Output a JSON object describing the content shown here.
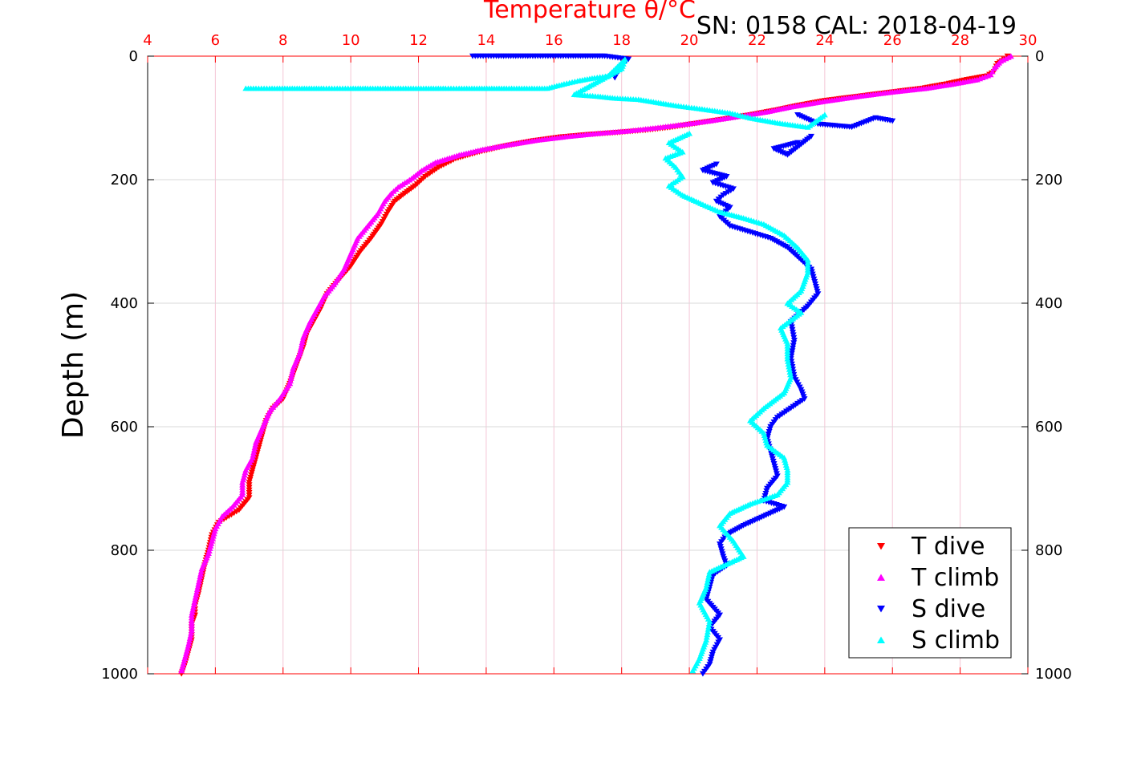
{
  "chart_data": {
    "type": "scatter",
    "title": "Temperature θ/°C",
    "subtitle": "SN: 0158  CAL: 2018-04-19",
    "ylabel": "Depth (m)",
    "xlim": [
      4,
      30
    ],
    "ylim": [
      0,
      1000
    ],
    "y_inverted": true,
    "x_ticks": [
      4,
      6,
      8,
      10,
      12,
      14,
      16,
      18,
      20,
      22,
      24,
      26,
      28,
      30
    ],
    "y_ticks": [
      0,
      200,
      400,
      600,
      800,
      1000
    ],
    "grid": true,
    "legend_position": "bottom-right",
    "colors": {
      "axis_top": "#ff0000",
      "grid": "#d9d9d9",
      "grid_x": "#f4c6d6"
    },
    "series": [
      {
        "name": "T dive",
        "marker": "triangle-down",
        "color": "#ff0000",
        "points": [
          [
            29.4,
            0
          ],
          [
            29.3,
            5
          ],
          [
            29.1,
            12
          ],
          [
            29.0,
            25
          ],
          [
            28.8,
            32
          ],
          [
            28.2,
            38
          ],
          [
            27.6,
            45
          ],
          [
            26.9,
            52
          ],
          [
            26.0,
            58
          ],
          [
            25.0,
            65
          ],
          [
            24.0,
            72
          ],
          [
            23.2,
            80
          ],
          [
            22.5,
            88
          ],
          [
            21.8,
            95
          ],
          [
            21.0,
            102
          ],
          [
            20.3,
            108
          ],
          [
            19.5,
            115
          ],
          [
            18.7,
            120
          ],
          [
            17.8,
            124
          ],
          [
            17.0,
            127
          ],
          [
            16.2,
            131
          ],
          [
            15.4,
            137
          ],
          [
            14.6,
            145
          ],
          [
            13.8,
            155
          ],
          [
            13.1,
            166
          ],
          [
            12.6,
            180
          ],
          [
            12.2,
            195
          ],
          [
            11.9,
            210
          ],
          [
            11.6,
            222
          ],
          [
            11.3,
            235
          ],
          [
            11.1,
            252
          ],
          [
            10.9,
            272
          ],
          [
            10.6,
            295
          ],
          [
            10.3,
            315
          ],
          [
            10.0,
            340
          ],
          [
            9.6,
            365
          ],
          [
            9.3,
            385
          ],
          [
            9.1,
            410
          ],
          [
            8.9,
            430
          ],
          [
            8.7,
            450
          ],
          [
            8.6,
            470
          ],
          [
            8.4,
            500
          ],
          [
            8.2,
            530
          ],
          [
            8.0,
            555
          ],
          [
            7.7,
            570
          ],
          [
            7.5,
            590
          ],
          [
            7.4,
            610
          ],
          [
            7.3,
            630
          ],
          [
            7.2,
            650
          ],
          [
            7.1,
            670
          ],
          [
            7.0,
            690
          ],
          [
            7.0,
            715
          ],
          [
            6.7,
            735
          ],
          [
            6.4,
            745
          ],
          [
            6.1,
            755
          ],
          [
            5.9,
            775
          ],
          [
            5.8,
            800
          ],
          [
            5.7,
            820
          ],
          [
            5.6,
            845
          ],
          [
            5.5,
            870
          ],
          [
            5.4,
            890
          ],
          [
            5.4,
            905
          ],
          [
            5.3,
            920
          ],
          [
            5.3,
            945
          ],
          [
            5.2,
            965
          ],
          [
            5.1,
            985
          ],
          [
            5.0,
            1000
          ]
        ]
      },
      {
        "name": "T climb",
        "marker": "triangle-up",
        "color": "#ff00ff",
        "points": [
          [
            29.5,
            0
          ],
          [
            29.2,
            8
          ],
          [
            29.0,
            20
          ],
          [
            28.9,
            30
          ],
          [
            28.5,
            38
          ],
          [
            27.8,
            45
          ],
          [
            27.0,
            52
          ],
          [
            26.0,
            58
          ],
          [
            25.0,
            65
          ],
          [
            24.0,
            73
          ],
          [
            23.0,
            82
          ],
          [
            22.3,
            90
          ],
          [
            21.5,
            97
          ],
          [
            20.7,
            104
          ],
          [
            19.9,
            110
          ],
          [
            19.0,
            116
          ],
          [
            18.2,
            121
          ],
          [
            17.3,
            125
          ],
          [
            16.4,
            130
          ],
          [
            15.5,
            136
          ],
          [
            14.7,
            143
          ],
          [
            13.9,
            151
          ],
          [
            13.2,
            160
          ],
          [
            12.5,
            172
          ],
          [
            12.1,
            185
          ],
          [
            11.8,
            198
          ],
          [
            11.4,
            212
          ],
          [
            11.2,
            222
          ],
          [
            11.0,
            235
          ],
          [
            10.8,
            255
          ],
          [
            10.5,
            275
          ],
          [
            10.2,
            295
          ],
          [
            10.0,
            320
          ],
          [
            9.8,
            345
          ],
          [
            9.5,
            370
          ],
          [
            9.2,
            390
          ],
          [
            9.0,
            410
          ],
          [
            8.8,
            430
          ],
          [
            8.6,
            455
          ],
          [
            8.5,
            480
          ],
          [
            8.3,
            505
          ],
          [
            8.2,
            530
          ],
          [
            7.9,
            555
          ],
          [
            7.6,
            575
          ],
          [
            7.4,
            600
          ],
          [
            7.2,
            625
          ],
          [
            7.1,
            650
          ],
          [
            6.9,
            670
          ],
          [
            6.8,
            690
          ],
          [
            6.8,
            710
          ],
          [
            6.5,
            730
          ],
          [
            6.2,
            745
          ],
          [
            6.0,
            765
          ],
          [
            5.9,
            785
          ],
          [
            5.8,
            805
          ],
          [
            5.6,
            830
          ],
          [
            5.5,
            855
          ],
          [
            5.4,
            880
          ],
          [
            5.3,
            905
          ],
          [
            5.3,
            930
          ],
          [
            5.2,
            955
          ],
          [
            5.1,
            975
          ],
          [
            5.0,
            995
          ]
        ]
      },
      {
        "name": "S dive",
        "marker": "triangle-down",
        "color": "#0000ff",
        "points": [
          [
            13.6,
            0
          ],
          [
            14.3,
            0
          ],
          [
            15.3,
            0
          ],
          [
            16.5,
            0
          ],
          [
            17.5,
            0
          ],
          [
            18.2,
            5
          ],
          [
            18.0,
            15
          ],
          [
            17.9,
            25
          ],
          [
            17.8,
            35
          ],
          [
            23.2,
            95
          ],
          [
            23.8,
            110
          ],
          [
            24.8,
            115
          ],
          [
            25.5,
            100
          ],
          [
            26.0,
            105
          ],
          [
            23.2,
            140
          ],
          [
            22.5,
            150
          ],
          [
            22.9,
            160
          ],
          [
            23.6,
            130
          ],
          [
            20.8,
            175
          ],
          [
            20.4,
            185
          ],
          [
            21.1,
            195
          ],
          [
            20.7,
            205
          ],
          [
            21.3,
            215
          ],
          [
            21.0,
            225
          ],
          [
            20.8,
            235
          ],
          [
            21.2,
            245
          ],
          [
            20.9,
            260
          ],
          [
            21.2,
            275
          ],
          [
            21.8,
            285
          ],
          [
            22.4,
            295
          ],
          [
            22.9,
            310
          ],
          [
            23.3,
            330
          ],
          [
            23.6,
            345
          ],
          [
            23.7,
            365
          ],
          [
            23.8,
            385
          ],
          [
            23.5,
            405
          ],
          [
            23.0,
            430
          ],
          [
            23.1,
            460
          ],
          [
            23.0,
            490
          ],
          [
            23.1,
            520
          ],
          [
            23.3,
            540
          ],
          [
            23.4,
            555
          ],
          [
            23.0,
            570
          ],
          [
            22.6,
            585
          ],
          [
            22.4,
            600
          ],
          [
            22.3,
            620
          ],
          [
            22.4,
            640
          ],
          [
            22.5,
            660
          ],
          [
            22.6,
            680
          ],
          [
            22.3,
            700
          ],
          [
            22.2,
            720
          ],
          [
            22.8,
            730
          ],
          [
            22.2,
            745
          ],
          [
            21.6,
            760
          ],
          [
            21.1,
            775
          ],
          [
            20.9,
            790
          ],
          [
            21.0,
            810
          ],
          [
            21.1,
            825
          ],
          [
            20.7,
            840
          ],
          [
            20.6,
            860
          ],
          [
            20.5,
            880
          ],
          [
            20.9,
            905
          ],
          [
            20.6,
            925
          ],
          [
            20.9,
            945
          ],
          [
            20.7,
            965
          ],
          [
            20.6,
            985
          ],
          [
            20.4,
            1000
          ]
        ]
      },
      {
        "name": "S climb",
        "marker": "triangle-up",
        "color": "#00ffff",
        "points": [
          [
            6.9,
            52
          ],
          [
            7.2,
            52
          ],
          [
            7.6,
            52
          ],
          [
            8.2,
            52
          ],
          [
            8.7,
            52
          ],
          [
            9.2,
            52
          ],
          [
            9.6,
            52
          ],
          [
            10.0,
            52
          ],
          [
            10.5,
            52
          ],
          [
            11.1,
            52
          ],
          [
            11.4,
            52
          ],
          [
            12.3,
            52
          ],
          [
            12.8,
            52
          ],
          [
            13.2,
            52
          ],
          [
            13.8,
            52
          ],
          [
            14.6,
            52
          ],
          [
            15.2,
            52
          ],
          [
            15.8,
            52
          ],
          [
            16.3,
            45
          ],
          [
            16.7,
            40
          ],
          [
            17.2,
            35
          ],
          [
            17.6,
            32
          ],
          [
            18.1,
            5
          ],
          [
            18.0,
            20
          ],
          [
            16.6,
            62
          ],
          [
            17.3,
            65
          ],
          [
            17.8,
            68
          ],
          [
            18.5,
            70
          ],
          [
            19.6,
            80
          ],
          [
            20.3,
            85
          ],
          [
            21.2,
            92
          ],
          [
            21.8,
            100
          ],
          [
            22.6,
            108
          ],
          [
            23.5,
            115
          ],
          [
            24.0,
            95
          ],
          [
            20.0,
            125
          ],
          [
            19.4,
            140
          ],
          [
            19.8,
            155
          ],
          [
            19.3,
            165
          ],
          [
            19.6,
            180
          ],
          [
            19.8,
            195
          ],
          [
            19.4,
            210
          ],
          [
            19.8,
            225
          ],
          [
            20.4,
            240
          ],
          [
            20.9,
            252
          ],
          [
            21.6,
            262
          ],
          [
            22.2,
            272
          ],
          [
            22.8,
            290
          ],
          [
            23.2,
            310
          ],
          [
            23.5,
            330
          ],
          [
            23.5,
            350
          ],
          [
            23.3,
            380
          ],
          [
            22.9,
            400
          ],
          [
            23.3,
            415
          ],
          [
            22.7,
            440
          ],
          [
            22.9,
            465
          ],
          [
            22.9,
            490
          ],
          [
            23.0,
            520
          ],
          [
            22.8,
            545
          ],
          [
            22.2,
            570
          ],
          [
            21.8,
            590
          ],
          [
            22.2,
            610
          ],
          [
            22.3,
            630
          ],
          [
            22.8,
            650
          ],
          [
            22.9,
            670
          ],
          [
            22.9,
            690
          ],
          [
            22.6,
            710
          ],
          [
            21.8,
            725
          ],
          [
            21.2,
            740
          ],
          [
            20.9,
            760
          ],
          [
            21.3,
            785
          ],
          [
            21.6,
            810
          ],
          [
            20.6,
            835
          ],
          [
            20.5,
            860
          ],
          [
            20.3,
            885
          ],
          [
            20.6,
            915
          ],
          [
            20.5,
            945
          ],
          [
            20.3,
            975
          ],
          [
            20.1,
            995
          ]
        ]
      }
    ]
  }
}
